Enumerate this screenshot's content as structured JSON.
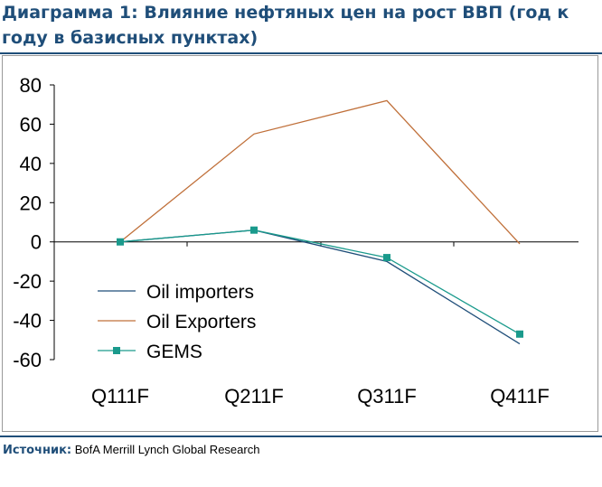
{
  "page": {
    "title": "Диаграмма 1: Влияние нефтяных цен на рост ВВП (год к году в базисных пунктах)",
    "source_label": "Источник:",
    "source_text": "BofA Merrill Lynch Global Research"
  },
  "chart_data": {
    "type": "line",
    "title": "",
    "xlabel": "",
    "ylabel": "",
    "categories": [
      "Q111F",
      "Q211F",
      "Q311F",
      "Q411F"
    ],
    "yticks": [
      "80",
      "60",
      "40",
      "20",
      "0",
      "-20",
      "-40",
      "-60"
    ],
    "ylim": [
      -60,
      80
    ],
    "grid": false,
    "legend_placement": "center-left",
    "series": [
      {
        "name": "Oil importers",
        "values": [
          0,
          6,
          -10,
          -52
        ],
        "color": "#1f4e79",
        "marker": "none"
      },
      {
        "name": "Oil Exporters",
        "values": [
          0,
          55,
          72,
          -1
        ],
        "color": "#c0703a",
        "marker": "none"
      },
      {
        "name": "GEMS",
        "values": [
          0,
          6,
          -8,
          -47
        ],
        "color": "#1a9a8c",
        "marker": "square"
      }
    ]
  }
}
